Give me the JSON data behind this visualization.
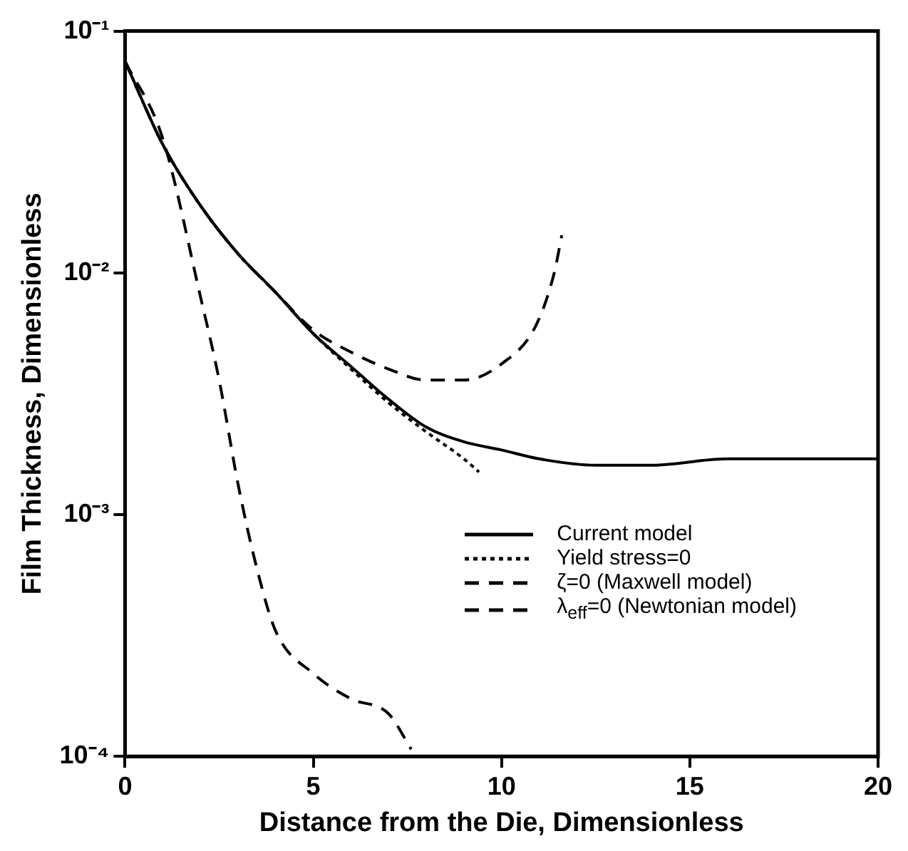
{
  "chart_data": {
    "type": "line",
    "xlabel": "Distance from the Die, Dimensionless",
    "ylabel": "Film Thickness, Dimensionless",
    "xlim": [
      0,
      20
    ],
    "xticks": [
      0,
      5,
      10,
      15,
      20
    ],
    "ylim": [
      0.0001,
      0.1
    ],
    "yticks": [
      {
        "value": 0.0001,
        "label": "10⁻⁴"
      },
      {
        "value": 0.001,
        "label": "10⁻³"
      },
      {
        "value": 0.01,
        "label": "10⁻²"
      },
      {
        "value": 0.1,
        "label": "10⁻¹"
      }
    ],
    "log": "y",
    "grid": false,
    "legend": "bottom right",
    "marker": "none",
    "series": [
      {
        "name": "Current model",
        "color": "#000000",
        "line_style": "solid",
        "x": [
          0,
          1,
          2,
          3,
          4,
          5,
          6,
          7,
          8,
          9,
          10,
          11,
          12.5,
          14,
          16,
          18,
          20
        ],
        "values": [
          0.075,
          0.034,
          0.019,
          0.012,
          0.0083,
          0.0056,
          0.0041,
          0.003,
          0.0023,
          0.002,
          0.00185,
          0.0017,
          0.0016,
          0.0016,
          0.0017,
          0.0017,
          0.0017
        ]
      },
      {
        "name": "Yield stress=0",
        "color": "#000000",
        "line_style": "dotted",
        "x": [
          0,
          1,
          2,
          3,
          4,
          5,
          6,
          7,
          8,
          9,
          9.4
        ],
        "values": [
          0.075,
          0.034,
          0.019,
          0.012,
          0.0083,
          0.0056,
          0.004,
          0.0029,
          0.0022,
          0.0017,
          0.0015
        ]
      },
      {
        "name": "ζ=0 (Maxwell model)",
        "color": "#000000",
        "line_style": "dashed",
        "x": [
          0,
          1,
          2,
          3,
          4,
          5,
          6,
          7,
          8,
          9,
          10,
          10.9,
          11.4,
          11.6
        ],
        "values": [
          0.075,
          0.034,
          0.019,
          0.012,
          0.0083,
          0.0058,
          0.0047,
          0.004,
          0.0036,
          0.0036,
          0.0042,
          0.006,
          0.01,
          0.0143
        ]
      },
      {
        "name": "λ$_{eff}$=0 (Newtonian model)",
        "color": "#000000",
        "line_style": "dashed",
        "x": [
          0,
          1,
          2,
          2.5,
          3,
          3.5,
          4,
          5,
          6,
          7,
          7.6
        ],
        "values": [
          0.075,
          0.036,
          0.008,
          0.0036,
          0.00134,
          0.0006,
          0.00033,
          0.00022,
          0.000173,
          0.00015,
          0.000107
        ]
      }
    ]
  }
}
